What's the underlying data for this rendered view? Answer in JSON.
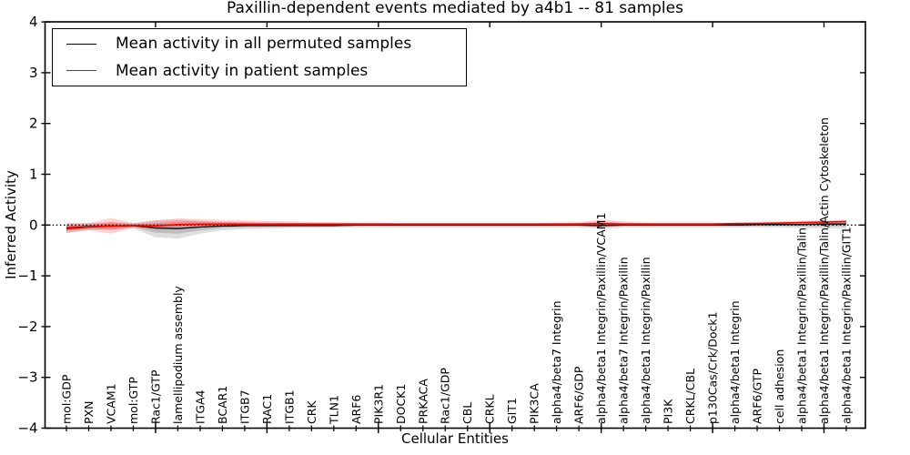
{
  "chart_data": {
    "type": "line",
    "title": "Paxillin-dependent events mediated by a4b1 -- 81 samples",
    "xlabel": "Cellular Entities",
    "ylabel": "Inferred Activity",
    "ylim": [
      -4,
      4
    ],
    "yticks": [
      -4,
      -3,
      -2,
      -1,
      0,
      1,
      2,
      3,
      4
    ],
    "x_major_tick_positions": [
      5,
      10,
      15,
      20,
      25,
      30,
      35
    ],
    "grid": false,
    "zero_line": {
      "style": "dotted",
      "color": "#000000",
      "y": 0
    },
    "legend": {
      "position": "upper left"
    },
    "categories": [
      "mol:GDP",
      "PXN",
      "VCAM1",
      "mol:GTP",
      "Rac1/GTP",
      "lamellipodium assembly",
      "ITGA4",
      "BCAR1",
      "ITGB7",
      "RAC1",
      "ITGB1",
      "CRK",
      "TLN1",
      "ARF6",
      "PIK3R1",
      "DOCK1",
      "PRKACA",
      "Rac1/GDP",
      "CBL",
      "CRKL",
      "GIT1",
      "PIK3CA",
      "alpha4/beta7 Integrin",
      "ARF6/GDP",
      "alpha4/beta1 Integrin/Paxillin/VCAM1",
      "alpha4/beta7 Integrin/Paxillin",
      "alpha4/beta1 Integrin/Paxillin",
      "PI3K",
      "CRKL/CBL",
      "p130Cas/Crk/Dock1",
      "alpha4/beta1 Integrin",
      "ARF6/GTP",
      "cell adhesion",
      "alpha4/beta1 Integrin/Paxillin/Talin",
      "alpha4/beta1 Integrin/Paxillin/Talin/Actin Cytoskeleton",
      "alpha4/beta1 Integrin/Paxillin/GIT1"
    ],
    "series": [
      {
        "name": "Mean activity in all permuted samples",
        "color": "#000000",
        "band_color": "#000000",
        "values": [
          -0.06,
          -0.03,
          -0.02,
          -0.01,
          -0.06,
          -0.07,
          -0.04,
          -0.02,
          -0.01,
          -0.01,
          -0.01,
          -0.01,
          -0.01,
          0,
          0,
          0,
          0,
          0,
          0,
          0,
          0,
          0,
          0,
          0,
          -0.01,
          0,
          0,
          0,
          0,
          0,
          0,
          0.01,
          0.01,
          0.01,
          0.02,
          0.02
        ],
        "band_low": [
          -0.16,
          -0.1,
          -0.09,
          -0.07,
          -0.24,
          -0.27,
          -0.17,
          -0.1,
          -0.08,
          -0.07,
          -0.06,
          -0.06,
          -0.05,
          -0.05,
          -0.05,
          -0.05,
          -0.05,
          -0.05,
          -0.05,
          -0.05,
          -0.05,
          -0.05,
          -0.05,
          -0.05,
          -0.07,
          -0.05,
          -0.05,
          -0.05,
          -0.05,
          -0.05,
          -0.05,
          -0.05,
          -0.05,
          -0.06,
          -0.07,
          -0.07
        ],
        "band_high": [
          0.04,
          0.04,
          0.05,
          0.04,
          0.09,
          0.11,
          0.08,
          0.06,
          0.05,
          0.04,
          0.04,
          0.04,
          0.04,
          0.04,
          0.04,
          0.04,
          0.04,
          0.04,
          0.04,
          0.04,
          0.04,
          0.04,
          0.04,
          0.04,
          0.05,
          0.04,
          0.04,
          0.04,
          0.04,
          0.04,
          0.04,
          0.05,
          0.05,
          0.06,
          0.07,
          0.07
        ]
      },
      {
        "name": "Mean activity in patient samples",
        "color": "#ff0000",
        "band_color": "#ff0000",
        "values": [
          -0.07,
          -0.04,
          -0.02,
          -0.01,
          -0.02,
          0.01,
          0.02,
          0.02,
          0.02,
          0.02,
          0.02,
          0.02,
          0.02,
          0.02,
          0.02,
          0.02,
          0.02,
          0.02,
          0.02,
          0.02,
          0.02,
          0.02,
          0.02,
          0.02,
          0.03,
          0.02,
          0.02,
          0.02,
          0.02,
          0.02,
          0.03,
          0.03,
          0.04,
          0.05,
          0.06,
          0.07
        ],
        "band_low": [
          -0.15,
          -0.1,
          -0.17,
          -0.05,
          -0.07,
          -0.05,
          -0.03,
          -0.02,
          -0.02,
          -0.01,
          -0.01,
          -0.01,
          -0.01,
          -0.01,
          -0.01,
          -0.01,
          -0.01,
          -0.01,
          -0.01,
          -0.01,
          -0.01,
          -0.01,
          -0.01,
          -0.01,
          -0.04,
          -0.01,
          -0.01,
          -0.01,
          0,
          0,
          0,
          0.01,
          0.01,
          0.02,
          0.02,
          0.03
        ],
        "band_high": [
          0.03,
          0.04,
          0.14,
          0.04,
          0.09,
          0.13,
          0.12,
          0.1,
          0.09,
          0.08,
          0.07,
          0.06,
          0.06,
          0.05,
          0.05,
          0.04,
          0.04,
          0.04,
          0.04,
          0.04,
          0.04,
          0.04,
          0.05,
          0.06,
          0.11,
          0.07,
          0.05,
          0.05,
          0.05,
          0.05,
          0.05,
          0.06,
          0.07,
          0.08,
          0.09,
          0.1
        ]
      }
    ]
  }
}
